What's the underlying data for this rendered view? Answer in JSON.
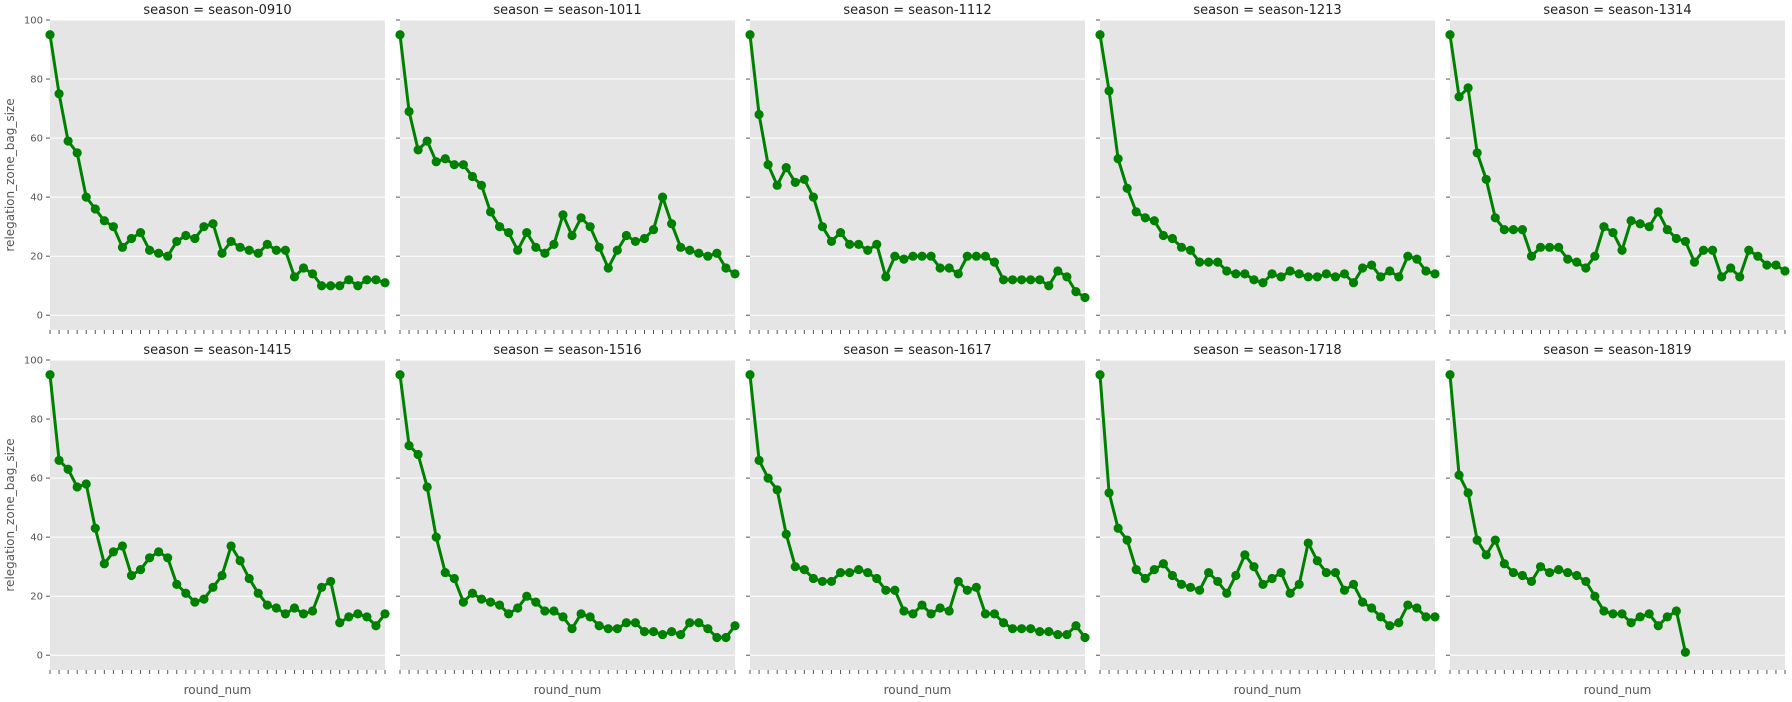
{
  "chart_data": {
    "type": "line",
    "facet_title_prefix": "season = ",
    "xlabel": "round_num",
    "ylabel": "relegation_zone_bag_size",
    "ylim": [
      -5,
      100
    ],
    "yticks": [
      "0",
      "20",
      "40",
      "60",
      "80",
      "100"
    ],
    "grid": true,
    "colors": {
      "line": "#008000",
      "panel_bg": "#e5e5e5",
      "grid": "#ffffff"
    },
    "panels": [
      {
        "season": "season-0910",
        "values": [
          95,
          75,
          59,
          55,
          40,
          36,
          32,
          30,
          23,
          26,
          28,
          22,
          21,
          20,
          25,
          27,
          26,
          30,
          31,
          21,
          25,
          23,
          22,
          21,
          24,
          22,
          22,
          13,
          16,
          14,
          10,
          10,
          10,
          12,
          10,
          12,
          12,
          11
        ]
      },
      {
        "season": "season-1011",
        "values": [
          95,
          69,
          56,
          59,
          52,
          53,
          51,
          51,
          47,
          44,
          35,
          30,
          28,
          22,
          28,
          23,
          21,
          24,
          34,
          27,
          33,
          30,
          23,
          16,
          22,
          27,
          25,
          26,
          29,
          40,
          31,
          23,
          22,
          21,
          20,
          21,
          16,
          14
        ]
      },
      {
        "season": "season-1112",
        "values": [
          95,
          68,
          51,
          44,
          50,
          45,
          46,
          40,
          30,
          25,
          28,
          24,
          24,
          22,
          24,
          13,
          20,
          19,
          20,
          20,
          20,
          16,
          16,
          14,
          20,
          20,
          20,
          18,
          12,
          12,
          12,
          12,
          12,
          10,
          15,
          13,
          8,
          6
        ]
      },
      {
        "season": "season-1213",
        "values": [
          95,
          76,
          53,
          43,
          35,
          33,
          32,
          27,
          26,
          23,
          22,
          18,
          18,
          18,
          15,
          14,
          14,
          12,
          11,
          14,
          13,
          15,
          14,
          13,
          13,
          14,
          13,
          14,
          11,
          16,
          17,
          13,
          15,
          13,
          20,
          19,
          15,
          14
        ]
      },
      {
        "season": "season-1314",
        "values": [
          95,
          74,
          77,
          55,
          46,
          33,
          29,
          29,
          29,
          20,
          23,
          23,
          23,
          19,
          18,
          16,
          20,
          30,
          28,
          22,
          32,
          31,
          30,
          35,
          29,
          26,
          25,
          18,
          22,
          22,
          13,
          16,
          13,
          22,
          20,
          17,
          17,
          15
        ]
      },
      {
        "season": "season-1415",
        "values": [
          95,
          66,
          63,
          57,
          58,
          43,
          31,
          35,
          37,
          27,
          29,
          33,
          35,
          33,
          24,
          21,
          18,
          19,
          23,
          27,
          37,
          32,
          26,
          21,
          17,
          16,
          14,
          16,
          14,
          15,
          23,
          25,
          11,
          13,
          14,
          13,
          10,
          14
        ]
      },
      {
        "season": "season-1516",
        "values": [
          95,
          71,
          68,
          57,
          40,
          28,
          26,
          18,
          21,
          19,
          18,
          17,
          14,
          16,
          20,
          18,
          15,
          15,
          13,
          9,
          14,
          13,
          10,
          9,
          9,
          11,
          11,
          8,
          8,
          7,
          8,
          7,
          11,
          11,
          9,
          6,
          6,
          10
        ]
      },
      {
        "season": "season-1617",
        "values": [
          95,
          66,
          60,
          56,
          41,
          30,
          29,
          26,
          25,
          25,
          28,
          28,
          29,
          28,
          26,
          22,
          22,
          15,
          14,
          17,
          14,
          16,
          15,
          25,
          22,
          23,
          14,
          14,
          11,
          9,
          9,
          9,
          8,
          8,
          7,
          7,
          10,
          6
        ]
      },
      {
        "season": "season-1718",
        "values": [
          95,
          55,
          43,
          39,
          29,
          26,
          29,
          31,
          27,
          24,
          23,
          22,
          28,
          25,
          21,
          27,
          34,
          30,
          24,
          26,
          28,
          21,
          24,
          38,
          32,
          28,
          28,
          22,
          24,
          18,
          16,
          13,
          10,
          11,
          17,
          16,
          13,
          13
        ]
      },
      {
        "season": "season-1819",
        "values": [
          95,
          61,
          55,
          39,
          34,
          39,
          31,
          28,
          27,
          25,
          30,
          28,
          29,
          28,
          27,
          25,
          20,
          15,
          14,
          14,
          11,
          13,
          14,
          10,
          13,
          15,
          1
        ]
      }
    ]
  }
}
